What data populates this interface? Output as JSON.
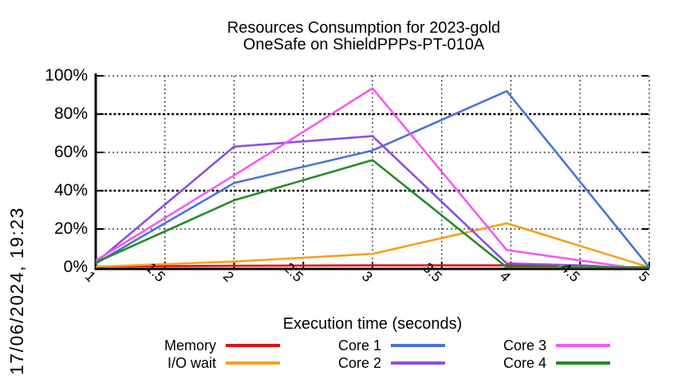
{
  "title": {
    "line1": "Resources Consumption for 2023-gold",
    "line2": "OneSafe on ShieldPPPs-PT-010A"
  },
  "timestamp": "17/06/2024, 19:23",
  "chart_data": {
    "type": "line",
    "title": "Resources Consumption for 2023-gold / OneSafe on ShieldPPPs-PT-010A",
    "xlabel": "Execution time (seconds)",
    "ylabel": "",
    "xlim": [
      1,
      5
    ],
    "ylim": [
      0,
      100
    ],
    "grid": true,
    "legend_position": "bottom",
    "x_ticks": {
      "values": [
        1,
        1.5,
        2,
        2.5,
        3,
        3.5,
        4,
        4.5,
        5
      ],
      "labels": [
        "1",
        "1.5",
        "2",
        "2.5",
        "3",
        "3.5",
        "4",
        "4.5",
        "5"
      ]
    },
    "y_ticks": {
      "values": [
        0,
        20,
        40,
        60,
        80,
        100
      ],
      "labels": [
        "0%",
        "20%",
        "40%",
        "60%",
        "80%",
        "100%"
      ]
    },
    "emphasized_y_gridlines": [
      40,
      80
    ],
    "axis_color": "#000000",
    "series": [
      {
        "name": "Memory",
        "color": "#e60d0d",
        "points": [
          [
            1,
            0.4
          ],
          [
            2,
            0.8
          ],
          [
            3,
            1
          ],
          [
            3.97,
            1
          ],
          [
            4.3,
            1
          ],
          [
            4.35,
            0
          ],
          [
            5,
            0
          ]
        ]
      },
      {
        "name": "I/O wait",
        "color": "#f9a01b",
        "points": [
          [
            1,
            0.3
          ],
          [
            2,
            3
          ],
          [
            3,
            7
          ],
          [
            3.97,
            23
          ],
          [
            5,
            0
          ]
        ]
      },
      {
        "name": "Core 1",
        "color": "#4a73d8",
        "points": [
          [
            1,
            2
          ],
          [
            2,
            44
          ],
          [
            3,
            61
          ],
          [
            3.97,
            92
          ],
          [
            5,
            0
          ]
        ]
      },
      {
        "name": "Core 2",
        "color": "#8a4fe3",
        "points": [
          [
            1,
            2.5
          ],
          [
            2,
            63
          ],
          [
            3,
            68.5
          ],
          [
            3.97,
            2
          ],
          [
            4.55,
            0.9
          ],
          [
            4.75,
            0
          ],
          [
            5,
            0
          ]
        ]
      },
      {
        "name": "Core 3",
        "color": "#f656f6",
        "points": [
          [
            1,
            3.5
          ],
          [
            2,
            48
          ],
          [
            3,
            93.5
          ],
          [
            3.97,
            9
          ],
          [
            4.85,
            0
          ],
          [
            5,
            0
          ]
        ]
      },
      {
        "name": "Core 4",
        "color": "#228b22",
        "points": [
          [
            1,
            2.5
          ],
          [
            2,
            35
          ],
          [
            3,
            56
          ],
          [
            3.97,
            0
          ],
          [
            5,
            0
          ]
        ]
      }
    ]
  }
}
